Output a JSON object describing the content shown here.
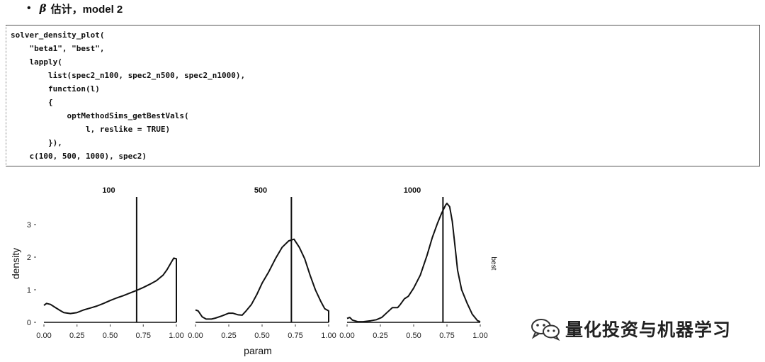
{
  "bullet": {
    "marker": "•",
    "symbol": "β",
    "text": "估计，model 2"
  },
  "code": {
    "lines": [
      "solver_density_plot(",
      "    \"beta1\", \"best\",",
      "    lapply(",
      "        list(spec2_n100, spec2_n500, spec2_n1000),",
      "        function(l)",
      "        {",
      "            optMethodSims_getBestVals(",
      "                l, reslike = TRUE)",
      "        }),",
      "    c(100, 500, 1000), spec2)"
    ]
  },
  "chart_data": {
    "type": "line",
    "xlabel": "param",
    "ylabel": "density",
    "facet_right_label": "best",
    "ylim": [
      0,
      3.7
    ],
    "xlim": [
      0,
      1
    ],
    "y_ticks": [
      0,
      1,
      2,
      3
    ],
    "y_tick_labels": [
      "0",
      "1",
      "2",
      "3"
    ],
    "x_ticks": [
      0,
      0.25,
      0.5,
      0.75,
      1
    ],
    "x_tick_labels": [
      "0.00",
      "0.25",
      "0.50",
      "0.75",
      "1.00"
    ],
    "grid": false,
    "panels": [
      {
        "title": "100",
        "vline": 0.7,
        "x": [
          0,
          0.02,
          0.05,
          0.08,
          0.12,
          0.15,
          0.2,
          0.25,
          0.3,
          0.35,
          0.4,
          0.45,
          0.5,
          0.55,
          0.6,
          0.65,
          0.7,
          0.75,
          0.8,
          0.85,
          0.9,
          0.93,
          0.96,
          0.98,
          1.0,
          1.0
        ],
        "y": [
          0.52,
          0.58,
          0.55,
          0.47,
          0.37,
          0.3,
          0.27,
          0.3,
          0.38,
          0.44,
          0.5,
          0.58,
          0.67,
          0.75,
          0.82,
          0.9,
          0.98,
          1.07,
          1.17,
          1.28,
          1.45,
          1.62,
          1.83,
          1.97,
          1.95,
          0
        ]
      },
      {
        "title": "500",
        "vline": 0.72,
        "x": [
          0,
          0.02,
          0.05,
          0.08,
          0.12,
          0.15,
          0.2,
          0.25,
          0.28,
          0.32,
          0.35,
          0.38,
          0.42,
          0.46,
          0.5,
          0.55,
          0.6,
          0.65,
          0.7,
          0.74,
          0.78,
          0.82,
          0.86,
          0.9,
          0.94,
          0.97,
          1.0,
          1.0
        ],
        "y": [
          0.38,
          0.35,
          0.17,
          0.1,
          0.1,
          0.13,
          0.2,
          0.28,
          0.28,
          0.23,
          0.22,
          0.35,
          0.55,
          0.85,
          1.2,
          1.55,
          1.95,
          2.3,
          2.5,
          2.55,
          2.3,
          1.95,
          1.45,
          1.0,
          0.65,
          0.42,
          0.35,
          0
        ]
      },
      {
        "title": "1000",
        "vline": 0.72,
        "x": [
          0,
          0.02,
          0.04,
          0.08,
          0.12,
          0.18,
          0.22,
          0.26,
          0.3,
          0.34,
          0.38,
          0.4,
          0.43,
          0.46,
          0.5,
          0.55,
          0.6,
          0.64,
          0.68,
          0.71,
          0.74,
          0.75,
          0.77,
          0.79,
          0.81,
          0.83,
          0.86,
          0.9,
          0.94,
          0.98,
          1.0
        ],
        "y": [
          0.12,
          0.15,
          0.07,
          0.02,
          0.02,
          0.05,
          0.08,
          0.15,
          0.3,
          0.45,
          0.45,
          0.55,
          0.72,
          0.8,
          1.05,
          1.45,
          2.05,
          2.6,
          3.05,
          3.35,
          3.6,
          3.65,
          3.55,
          3.1,
          2.35,
          1.6,
          1.0,
          0.6,
          0.25,
          0.05,
          0.02
        ]
      }
    ]
  },
  "watermark": {
    "icon": "wechat-icon",
    "text": "量化投资与机器学习"
  }
}
